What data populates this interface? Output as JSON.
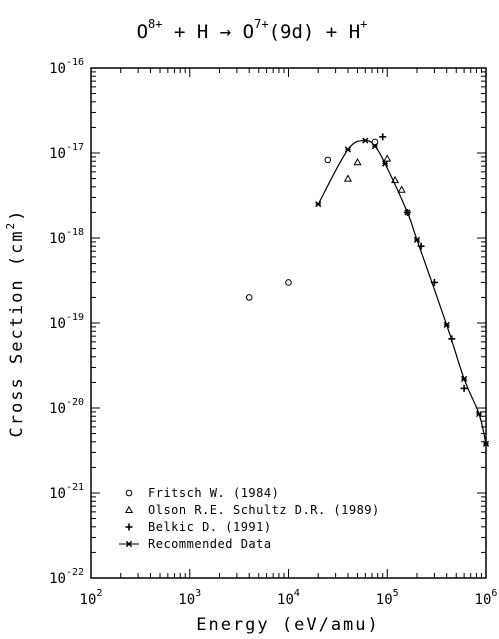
{
  "chart_data": {
    "type": "scatter",
    "title_parts": {
      "projectile": "O",
      "projectile_charge": "8+",
      "plus1": "+",
      "target": "H",
      "arrow": "→",
      "product": "O",
      "product_charge": "7+",
      "product_state": "(9d)",
      "plus2": "+",
      "ion": "H",
      "ion_charge": "+"
    },
    "xlabel": "Energy (eV/amu)",
    "ylabel_main": "Cross Section (cm",
    "ylabel_sup": "2",
    "ylabel_end": ")",
    "xscale": "log",
    "yscale": "log",
    "xlim": [
      100,
      1000000
    ],
    "ylim": [
      1e-22,
      1e-16
    ],
    "x_ticks": [
      {
        "base": "10",
        "exp": "2",
        "value": 100
      },
      {
        "base": "10",
        "exp": "3",
        "value": 1000
      },
      {
        "base": "10",
        "exp": "4",
        "value": 10000
      },
      {
        "base": "10",
        "exp": "5",
        "value": 100000
      },
      {
        "base": "10",
        "exp": "6",
        "value": 1000000
      }
    ],
    "y_ticks": [
      {
        "base": "10",
        "exp": "-16",
        "value": 1e-16
      },
      {
        "base": "10",
        "exp": "-17",
        "value": 1e-17
      },
      {
        "base": "10",
        "exp": "-18",
        "value": 1e-18
      },
      {
        "base": "10",
        "exp": "-19",
        "value": 1e-19
      },
      {
        "base": "10",
        "exp": "-20",
        "value": 1e-20
      },
      {
        "base": "10",
        "exp": "-21",
        "value": 1e-21
      },
      {
        "base": "10",
        "exp": "-22",
        "value": 1e-22
      }
    ],
    "legend_position": "bottom-left",
    "series": [
      {
        "name": "Fritsch W. (1984)",
        "marker": "circle",
        "points": [
          [
            4000,
            2e-19
          ],
          [
            10000,
            3e-19
          ],
          [
            25000,
            8.3e-18
          ],
          [
            75000,
            1.35e-17
          ]
        ]
      },
      {
        "name": "Olson R.E. Schultz D.R. (1989)",
        "marker": "triangle",
        "points": [
          [
            40000,
            5e-18
          ],
          [
            50000,
            7.8e-18
          ],
          [
            100000,
            8.6e-18
          ],
          [
            120000,
            4.8e-18
          ],
          [
            140000,
            3.7e-18
          ]
        ]
      },
      {
        "name": "Belkic D. (1991)",
        "marker": "plus",
        "points": [
          [
            90000,
            1.55e-17
          ],
          [
            160000,
            2e-18
          ],
          [
            220000,
            8e-19
          ],
          [
            300000,
            3e-19
          ],
          [
            450000,
            6.5e-20
          ],
          [
            600000,
            1.7e-20
          ]
        ]
      },
      {
        "name": "Recommended Data",
        "marker": "asterisk",
        "line": true,
        "points": [
          [
            20000,
            2.5e-18
          ],
          [
            40000,
            1.1e-17
          ],
          [
            60000,
            1.4e-17
          ],
          [
            75000,
            1.2e-17
          ],
          [
            95000,
            7.5e-18
          ],
          [
            160000,
            2e-18
          ],
          [
            200000,
            9.5e-19
          ],
          [
            400000,
            9.5e-20
          ],
          [
            600000,
            2.2e-20
          ],
          [
            850000,
            8.5e-21
          ],
          [
            1000000,
            3.8e-21
          ]
        ]
      }
    ]
  }
}
